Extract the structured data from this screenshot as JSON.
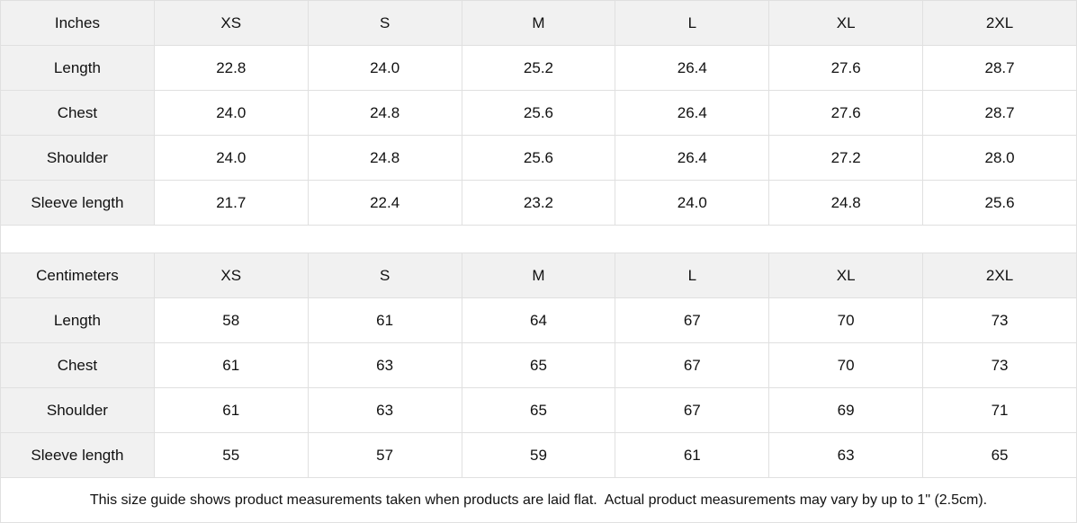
{
  "tables": [
    {
      "unit_label": "Inches",
      "sizes": [
        "XS",
        "S",
        "M",
        "L",
        "XL",
        "2XL"
      ],
      "rows": [
        {
          "label": "Length",
          "values": [
            "22.8",
            "24.0",
            "25.2",
            "26.4",
            "27.6",
            "28.7"
          ]
        },
        {
          "label": "Chest",
          "values": [
            "24.0",
            "24.8",
            "25.6",
            "26.4",
            "27.6",
            "28.7"
          ]
        },
        {
          "label": "Shoulder",
          "values": [
            "24.0",
            "24.8",
            "25.6",
            "26.4",
            "27.2",
            "28.0"
          ]
        },
        {
          "label": "Sleeve length",
          "values": [
            "21.7",
            "22.4",
            "23.2",
            "24.0",
            "24.8",
            "25.6"
          ]
        }
      ]
    },
    {
      "unit_label": "Centimeters",
      "sizes": [
        "XS",
        "S",
        "M",
        "L",
        "XL",
        "2XL"
      ],
      "rows": [
        {
          "label": "Length",
          "values": [
            "58",
            "61",
            "64",
            "67",
            "70",
            "73"
          ]
        },
        {
          "label": "Chest",
          "values": [
            "61",
            "63",
            "65",
            "67",
            "70",
            "73"
          ]
        },
        {
          "label": "Shoulder",
          "values": [
            "61",
            "63",
            "65",
            "67",
            "69",
            "71"
          ]
        },
        {
          "label": "Sleeve length",
          "values": [
            "55",
            "57",
            "59",
            "61",
            "63",
            "65"
          ]
        }
      ]
    }
  ],
  "footer": {
    "note": "This size guide shows product measurements taken when products are laid flat.  Actual product measurements may vary by up to 1\" (2.5cm)."
  },
  "colors": {
    "header_bg": "#f1f1f1",
    "border": "#e0e0e0",
    "text": "#111111",
    "bg": "#ffffff"
  }
}
